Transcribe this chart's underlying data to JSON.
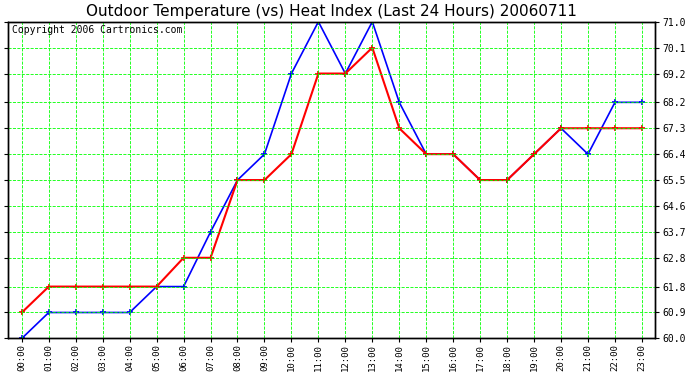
{
  "title": "Outdoor Temperature (vs) Heat Index (Last 24 Hours) 20060711",
  "copyright": "Copyright 2006 Cartronics.com",
  "hours": [
    "00:00",
    "01:00",
    "02:00",
    "03:00",
    "04:00",
    "05:00",
    "06:00",
    "07:00",
    "08:00",
    "09:00",
    "10:00",
    "11:00",
    "12:00",
    "13:00",
    "14:00",
    "15:00",
    "16:00",
    "17:00",
    "18:00",
    "19:00",
    "20:00",
    "21:00",
    "22:00",
    "23:00"
  ],
  "temp": [
    60.0,
    60.9,
    60.9,
    60.9,
    60.9,
    61.8,
    61.8,
    63.7,
    65.5,
    66.4,
    69.2,
    71.0,
    69.2,
    71.0,
    68.2,
    66.4,
    66.4,
    65.5,
    65.5,
    66.4,
    67.3,
    66.4,
    68.2,
    68.2
  ],
  "heat_index": [
    60.9,
    61.8,
    61.8,
    61.8,
    61.8,
    61.8,
    62.8,
    62.8,
    65.5,
    65.5,
    66.4,
    69.2,
    69.2,
    70.1,
    67.3,
    66.4,
    66.4,
    65.5,
    65.5,
    66.4,
    67.3,
    67.3,
    67.3,
    67.3
  ],
  "temp_color": "#0000FF",
  "heat_color": "#FF0000",
  "bg_color": "#FFFFFF",
  "plot_bg": "#FFFFFF",
  "grid_color": "#00FF00",
  "ylim": [
    60.0,
    71.0
  ],
  "yticks": [
    60.0,
    60.9,
    61.8,
    62.8,
    63.7,
    64.6,
    65.5,
    66.4,
    67.3,
    68.2,
    69.2,
    70.1,
    71.0
  ],
  "title_fontsize": 11,
  "copyright_fontsize": 7
}
